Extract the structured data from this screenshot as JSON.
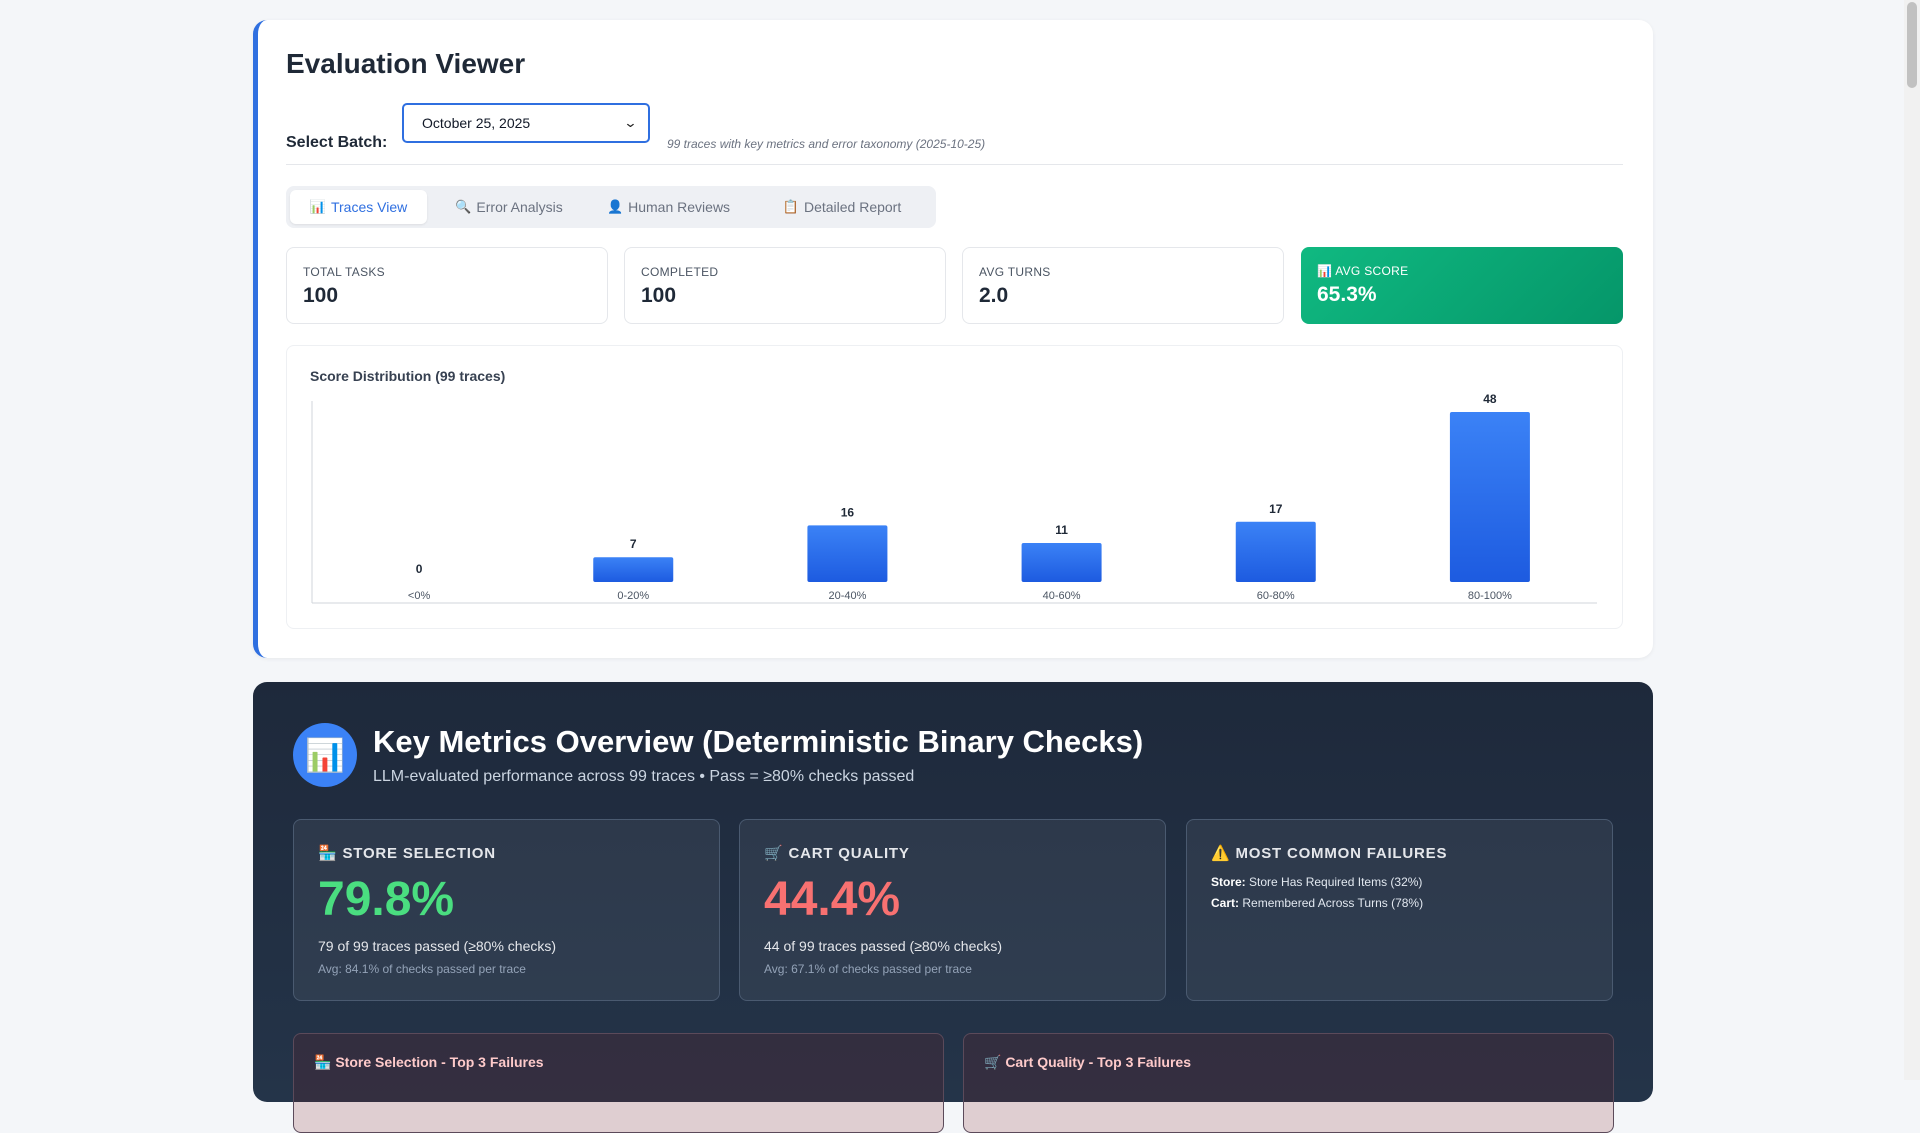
{
  "header": {
    "title": "Evaluation Viewer",
    "batch_label": "Select Batch:",
    "batch_value": "October 25, 2025",
    "batch_hint": "99 traces with key metrics and error taxonomy (2025-10-25)"
  },
  "tabs": [
    {
      "icon": "📊",
      "label": "Traces View",
      "active": true
    },
    {
      "icon": "🔍",
      "label": "Error Analysis",
      "active": false
    },
    {
      "icon": "👤",
      "label": "Human Reviews",
      "active": false
    },
    {
      "icon": "📋",
      "label": "Detailed Report",
      "active": false
    }
  ],
  "stats": [
    {
      "label": "TOTAL TASKS",
      "value": "100"
    },
    {
      "label": "COMPLETED",
      "value": "100"
    },
    {
      "label": "AVG TURNS",
      "value": "2.0"
    },
    {
      "label": "📊 AVG SCORE",
      "value": "65.3%"
    }
  ],
  "chart_data": {
    "type": "bar",
    "title": "Score Distribution (99 traces)",
    "categories": [
      "<0%",
      "0-20%",
      "20-40%",
      "40-60%",
      "60-80%",
      "80-100%"
    ],
    "values": [
      0,
      7,
      16,
      11,
      17,
      48
    ],
    "xlabel": "",
    "ylabel": "",
    "ylim": [
      0,
      48
    ],
    "grid": false,
    "colors": {
      "bar_top": "#3b82f6",
      "bar_bottom": "#1d5be0"
    }
  },
  "key_metrics": {
    "icon": "📊",
    "title": "Key Metrics Overview (Deterministic Binary Checks)",
    "subtitle": "LLM-evaluated performance across 99 traces • Pass = ≥80% checks passed",
    "store": {
      "heading": "🏪 STORE SELECTION",
      "pct": "79.8%",
      "passed": "79 of 99 traces passed (≥80% checks)",
      "avg": "Avg: 84.1% of checks passed per trace",
      "color": "#4ade80"
    },
    "cart": {
      "heading": "🛒 CART QUALITY",
      "pct": "44.4%",
      "passed": "44 of 99 traces passed (≥80% checks)",
      "avg": "Avg: 67.1% of checks passed per trace",
      "color": "#f87171"
    },
    "failures": {
      "heading": "⚠️ MOST COMMON FAILURES",
      "items": [
        {
          "label": "Store:",
          "text": "Store Has Required Items (32%)"
        },
        {
          "label": "Cart:",
          "text": "Remembered Across Turns (78%)"
        }
      ]
    },
    "top_failures": [
      {
        "heading": "🏪 Store Selection - Top 3 Failures"
      },
      {
        "heading": "🛒 Cart Quality - Top 3 Failures"
      }
    ]
  }
}
